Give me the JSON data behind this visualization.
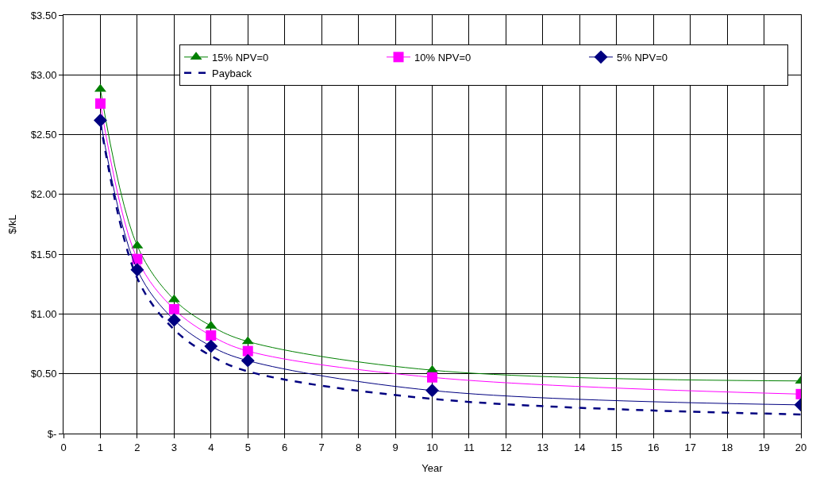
{
  "chart_data": {
    "type": "line",
    "xlabel": "Year",
    "ylabel": "$/kL",
    "x": [
      1,
      2,
      3,
      4,
      5,
      10,
      20
    ],
    "series": [
      {
        "name": "15% NPV=0",
        "color": "#008000",
        "marker": "triangle",
        "line_style": "solid",
        "values": [
          2.88,
          1.57,
          1.12,
          0.9,
          0.77,
          0.53,
          0.44
        ]
      },
      {
        "name": "10% NPV=0",
        "color": "#ff00ff",
        "marker": "square",
        "line_style": "solid",
        "values": [
          2.76,
          1.46,
          1.04,
          0.82,
          0.69,
          0.47,
          0.33
        ]
      },
      {
        "name": "5% NPV=0",
        "color": "#000080",
        "marker": "diamond",
        "line_style": "solid",
        "values": [
          2.62,
          1.37,
          0.95,
          0.73,
          0.61,
          0.36,
          0.24
        ]
      },
      {
        "name": "Payback",
        "color": "#000080",
        "marker": "none",
        "line_style": "dashed",
        "values": [
          2.6,
          1.3,
          0.87,
          0.65,
          0.52,
          0.29,
          0.16
        ]
      }
    ],
    "xlim": [
      0,
      20
    ],
    "xticks": [
      0,
      1,
      2,
      3,
      4,
      5,
      6,
      7,
      8,
      9,
      10,
      11,
      12,
      13,
      14,
      15,
      16,
      17,
      18,
      19,
      20
    ],
    "ylim": [
      0,
      3.5
    ],
    "yticks": [
      {
        "value": 0,
        "label": "$-"
      },
      {
        "value": 0.5,
        "label": "$0.50"
      },
      {
        "value": 1,
        "label": "$1.00"
      },
      {
        "value": 1.5,
        "label": "$1.50"
      },
      {
        "value": 2,
        "label": "$2.00"
      },
      {
        "value": 2.5,
        "label": "$2.50"
      },
      {
        "value": 3,
        "label": "$3.00"
      },
      {
        "value": 3.5,
        "label": "$3.50"
      }
    ],
    "grid": true,
    "legend": "top"
  }
}
